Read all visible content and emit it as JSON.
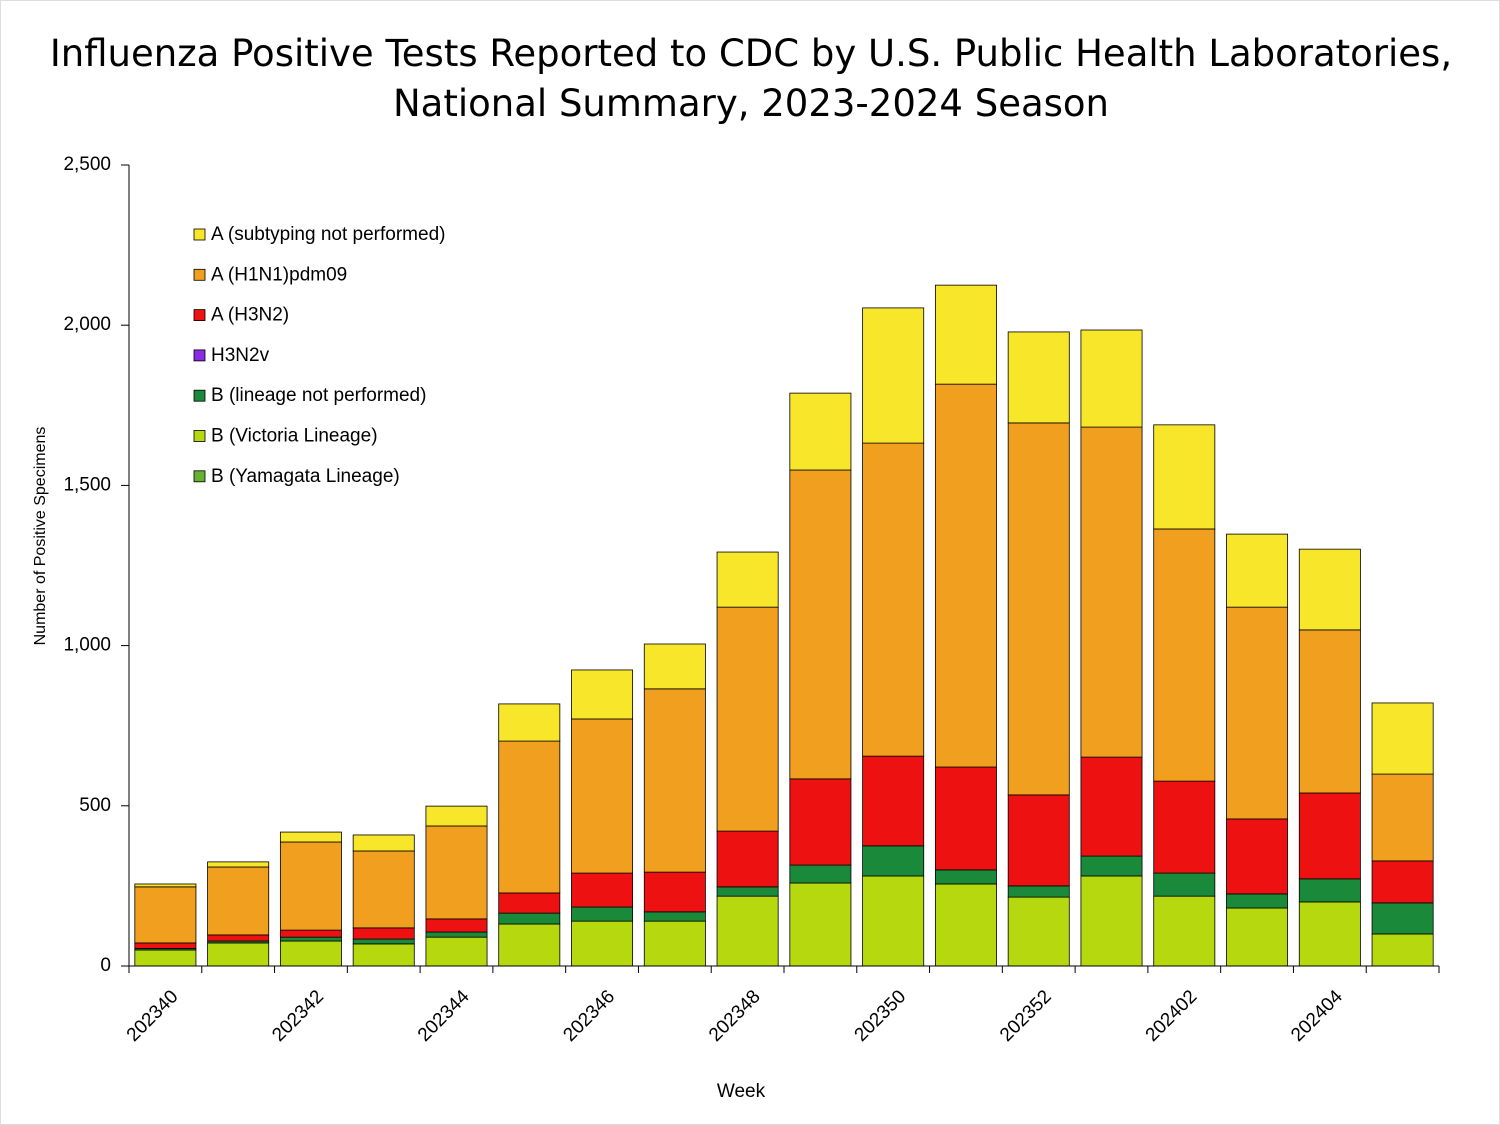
{
  "chart_data": {
    "type": "stacked-bar",
    "title": "Influenza Positive Tests Reported to CDC by U.S. Public Health Laboratories, National Summary, 2023-2024 Season",
    "x_label": "Week",
    "y_label": "Number of Positive Specimens",
    "categories": [
      "202340",
      null,
      "202342",
      null,
      "202344",
      null,
      "202346",
      null,
      "202348",
      null,
      "202350",
      null,
      "202352",
      null,
      "202402",
      null,
      "202404",
      null
    ],
    "series": [
      {
        "name": "A (subtyping not performed)",
        "color": "#f7e62a",
        "values": [
          9,
          16,
          31,
          50,
          62,
          116,
          153,
          140,
          172,
          240,
          422,
          309,
          284,
          303,
          325,
          228,
          252,
          222
        ]
      },
      {
        "name": "A (H1N1)pdm09",
        "color": "#f0a01e",
        "values": [
          175,
          212,
          275,
          240,
          290,
          474,
          481,
          572,
          699,
          964,
          977,
          1195,
          1161,
          1030,
          787,
          661,
          509,
          271
        ]
      },
      {
        "name": "A (H3N2)",
        "color": "#ee1111",
        "values": [
          17,
          19,
          22,
          35,
          41,
          63,
          106,
          124,
          174,
          269,
          280,
          321,
          284,
          309,
          287,
          234,
          268,
          131
        ]
      },
      {
        "name": "H3N2v",
        "color": "#8a2be2",
        "values": [
          0,
          0,
          0,
          0,
          0,
          0,
          0,
          0,
          0,
          0,
          0,
          0,
          0,
          0,
          0,
          0,
          0,
          0
        ]
      },
      {
        "name": "B (lineage not performed)",
        "color": "#1a8a3a",
        "values": [
          5,
          6,
          12,
          15,
          16,
          34,
          44,
          29,
          29,
          56,
          94,
          44,
          35,
          62,
          72,
          44,
          72,
          97
        ]
      },
      {
        "name": "B (Victoria Lineage)",
        "color": "#b5d80f",
        "values": [
          50,
          72,
          78,
          69,
          90,
          131,
          140,
          140,
          218,
          259,
          281,
          256,
          215,
          281,
          218,
          181,
          200,
          100
        ]
      },
      {
        "name": "B (Yamagata Lineage)",
        "color": "#66b032",
        "values": [
          0,
          0,
          0,
          0,
          0,
          0,
          0,
          0,
          0,
          0,
          0,
          0,
          0,
          0,
          0,
          0,
          0,
          0
        ]
      }
    ],
    "ylim": [
      0,
      2500
    ],
    "yticks": [
      0,
      500,
      {
        "value": 1000,
        "label": "1,000"
      },
      {
        "value": 1500,
        "label": "1,500"
      },
      {
        "value": 2000,
        "label": "2,000"
      },
      {
        "value": 2500,
        "label": "2,500"
      }
    ],
    "grid": false
  }
}
